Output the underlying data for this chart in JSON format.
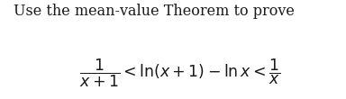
{
  "line1": "Use the mean-value Theorem to prove",
  "formula": "$\\dfrac{1}{x+1} < \\ln(x+1) - \\ln x < \\dfrac{1}{x}$",
  "text_color": "#1a1a1a",
  "background_color": "#ffffff",
  "line1_fontsize": 11.5,
  "formula_fontsize": 12.5,
  "fig_width": 3.84,
  "fig_height": 1.1,
  "dpi": 100
}
